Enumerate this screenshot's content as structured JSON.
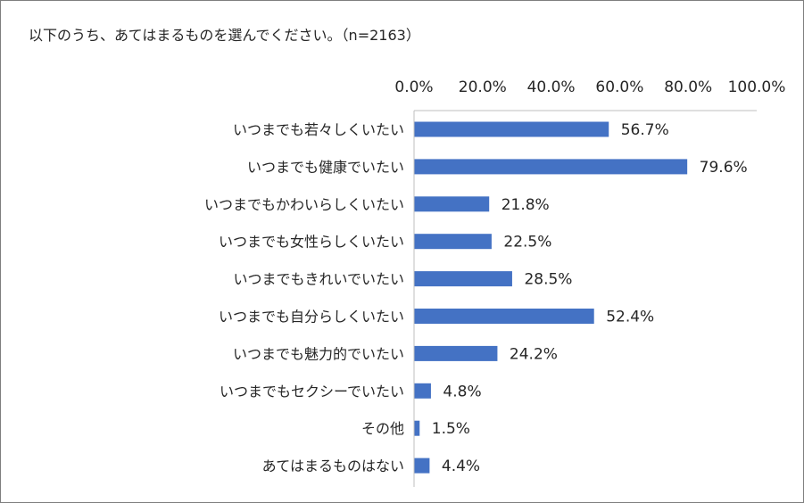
{
  "chart_data": {
    "type": "bar",
    "orientation": "horizontal",
    "title": "以下のうち、あてはまるものを選んでください。（n=2163）",
    "categories": [
      "いつまでも若々しくいたい",
      "いつまでも健康でいたい",
      "いつまでもかわいらしくいたい",
      "いつまでも女性らしくいたい",
      "いつまでもきれいでいたい",
      "いつまでも自分らしくいたい",
      "いつまでも魅力的でいたい",
      "いつまでもセクシーでいたい",
      "その他",
      "あてはまるものはない"
    ],
    "values": [
      56.7,
      79.6,
      21.8,
      22.5,
      28.5,
      52.4,
      24.2,
      4.8,
      1.5,
      4.4
    ],
    "value_labels": [
      "56.7%",
      "79.6%",
      "21.8%",
      "22.5%",
      "28.5%",
      "52.4%",
      "24.2%",
      "4.8%",
      "1.5%",
      "4.4%"
    ],
    "x_ticks": [
      0,
      20,
      40,
      60,
      80,
      100
    ],
    "x_tick_labels": [
      "0.0%",
      "20.0%",
      "40.0%",
      "60.0%",
      "80.0%",
      "100.0%"
    ],
    "xlim": [
      0,
      100
    ],
    "axis_position": "top",
    "grid": false,
    "legend": "none",
    "bar_color": "#4472c4",
    "text_color": "#262626",
    "axis_color": "#bfbfbf"
  }
}
